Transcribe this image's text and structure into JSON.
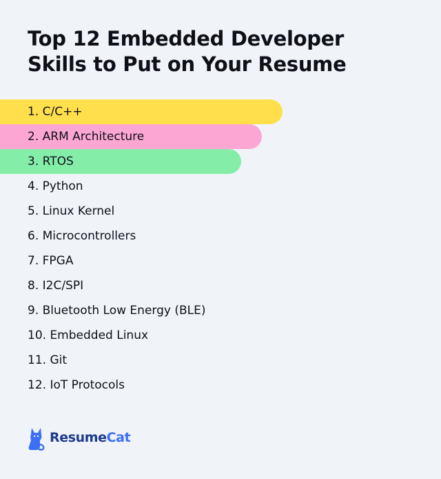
{
  "title": {
    "line1": "Top 12 Embedded Developer",
    "line2": "Skills to Put on Your Resume"
  },
  "skills": [
    "1. C/C++",
    "2. ARM Architecture",
    "3. RTOS",
    "4. Python",
    "5. Linux Kernel",
    "6. Microcontrollers",
    "7. FPGA",
    "8. I2C/SPI",
    "9. Bluetooth Low Energy (BLE)",
    "10. Embedded Linux",
    "11. Git",
    "12. IoT Protocols"
  ],
  "brand": {
    "name_part1": "Resume",
    "name_part2": "Cat",
    "logo_icon": "cat-icon"
  },
  "colors": {
    "background": "#f0f3f8",
    "highlight_1": "#ffe04c",
    "highlight_2": "#fca7d3",
    "highlight_3": "#84eea8",
    "brand_dark": "#1e3a8a",
    "brand_accent": "#3b6ff5"
  }
}
